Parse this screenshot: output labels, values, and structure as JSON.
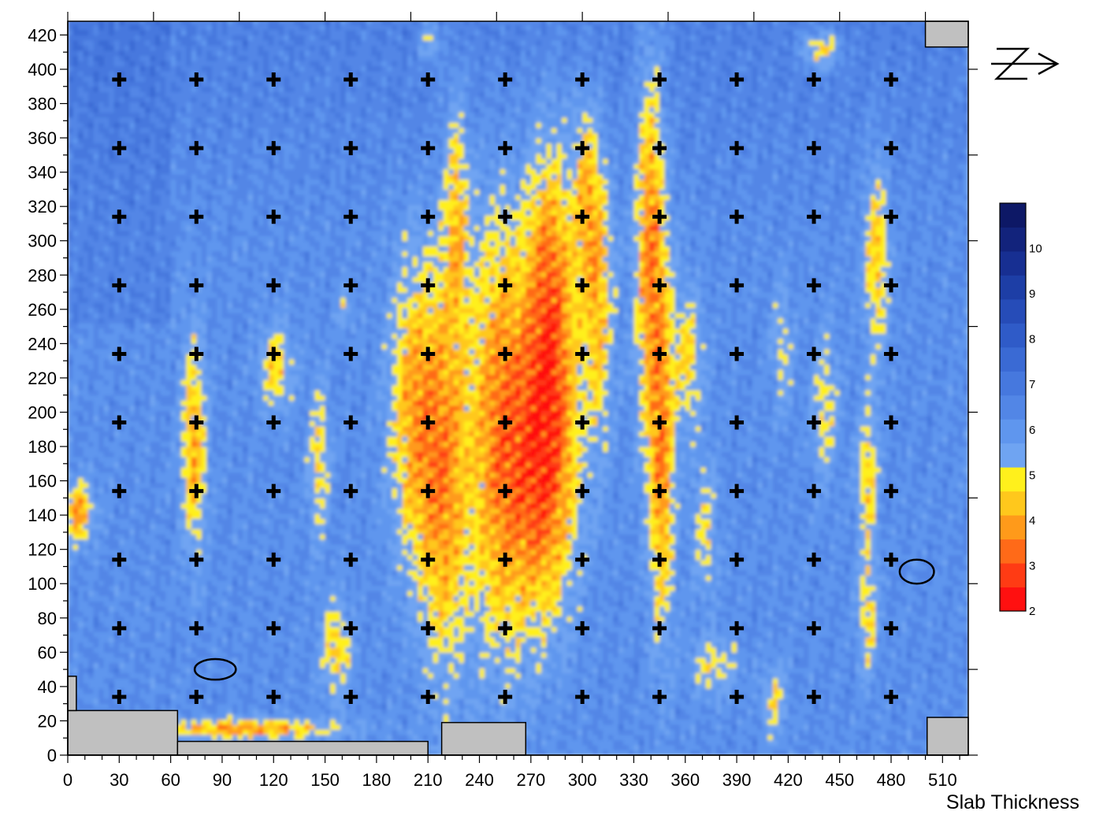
{
  "chart_data": {
    "type": "heatmap",
    "title": "Slab Thickness",
    "xlim": [
      0,
      525
    ],
    "ylim": [
      0,
      428
    ],
    "x_ticks": [
      0,
      30,
      60,
      90,
      120,
      150,
      180,
      210,
      240,
      270,
      300,
      330,
      360,
      390,
      420,
      450,
      480,
      510
    ],
    "y_ticks": [
      0,
      20,
      40,
      60,
      80,
      100,
      120,
      140,
      160,
      180,
      200,
      220,
      240,
      260,
      280,
      300,
      320,
      340,
      360,
      380,
      400,
      420
    ],
    "grid": false,
    "legend": "right colorbar",
    "north_arrow": true,
    "colorbar": {
      "ticks": [
        2,
        3,
        4,
        5,
        6,
        7,
        8,
        9,
        10
      ],
      "range": [
        2,
        11
      ],
      "colors": [
        "#ff1010",
        "#ff3b14",
        "#ff6a18",
        "#ff9a1a",
        "#ffc81c",
        "#fff01c",
        "#6fa4f2",
        "#5f96ee",
        "#5286e6",
        "#4678de",
        "#3a6ad4",
        "#2f5bc8",
        "#264cb8",
        "#1d3ea6",
        "#172f92",
        "#12237c",
        "#0d1866"
      ]
    },
    "base_value": 6.2,
    "thin_zones": [
      {
        "x": 345,
        "y": 168,
        "sx": 5,
        "sy": 70,
        "depth": 2.2
      },
      {
        "x": 338,
        "y": 300,
        "sx": 6,
        "sy": 80,
        "depth": 2.4
      },
      {
        "x": 280,
        "y": 260,
        "sx": 10,
        "sy": 70,
        "depth": 2.6
      },
      {
        "x": 275,
        "y": 160,
        "sx": 14,
        "sy": 60,
        "depth": 2.4
      },
      {
        "x": 250,
        "y": 190,
        "sx": 12,
        "sy": 90,
        "depth": 2.3
      },
      {
        "x": 218,
        "y": 160,
        "sx": 10,
        "sy": 80,
        "depth": 2.2
      },
      {
        "x": 200,
        "y": 200,
        "sx": 10,
        "sy": 60,
        "depth": 1.9
      },
      {
        "x": 225,
        "y": 320,
        "sx": 5,
        "sy": 50,
        "depth": 1.6
      },
      {
        "x": 300,
        "y": 330,
        "sx": 5,
        "sy": 40,
        "depth": 1.4
      },
      {
        "x": 308,
        "y": 270,
        "sx": 6,
        "sy": 60,
        "depth": 1.8
      },
      {
        "x": 360,
        "y": 230,
        "sx": 6,
        "sy": 30,
        "depth": 1.4
      },
      {
        "x": 370,
        "y": 130,
        "sx": 5,
        "sy": 30,
        "depth": 1.1
      },
      {
        "x": 72,
        "y": 180,
        "sx": 5,
        "sy": 45,
        "depth": 2.0
      },
      {
        "x": 120,
        "y": 225,
        "sx": 7,
        "sy": 18,
        "depth": 1.5
      },
      {
        "x": 145,
        "y": 170,
        "sx": 4,
        "sy": 30,
        "depth": 1.5
      },
      {
        "x": 5,
        "y": 140,
        "sx": 6,
        "sy": 12,
        "depth": 2.2
      },
      {
        "x": 155,
        "y": 60,
        "sx": 6,
        "sy": 20,
        "depth": 1.6
      },
      {
        "x": 100,
        "y": 14,
        "sx": 40,
        "sy": 4,
        "depth": 2.2
      },
      {
        "x": 440,
        "y": 200,
        "sx": 5,
        "sy": 30,
        "depth": 1.3
      },
      {
        "x": 465,
        "y": 160,
        "sx": 4,
        "sy": 30,
        "depth": 1.6
      },
      {
        "x": 470,
        "y": 290,
        "sx": 5,
        "sy": 40,
        "depth": 1.7
      },
      {
        "x": 465,
        "y": 80,
        "sx": 4,
        "sy": 25,
        "depth": 1.4
      },
      {
        "x": 438,
        "y": 410,
        "sx": 8,
        "sy": 8,
        "depth": 1.8
      },
      {
        "x": 415,
        "y": 235,
        "sx": 4,
        "sy": 25,
        "depth": 1.1
      },
      {
        "x": 375,
        "y": 50,
        "sx": 10,
        "sy": 12,
        "depth": 1.2
      },
      {
        "x": 210,
        "y": 415,
        "sx": 4,
        "sy": 10,
        "depth": 1.4
      },
      {
        "x": 160,
        "y": 260,
        "sx": 3,
        "sy": 10,
        "depth": 0.9
      },
      {
        "x": 410,
        "y": 30,
        "sx": 5,
        "sy": 15,
        "depth": 1.3
      }
    ],
    "markers": {
      "symbol": "plus",
      "x": [
        30,
        75,
        120,
        165,
        210,
        255,
        300,
        345,
        390,
        435,
        480
      ],
      "y": [
        34,
        74,
        114,
        154,
        194,
        234,
        274,
        314,
        354,
        394
      ]
    },
    "ellipses": [
      {
        "cx": 86,
        "cy": 50,
        "rx": 12,
        "ry": 6
      },
      {
        "cx": 495,
        "cy": 107,
        "rx": 10,
        "ry": 7
      }
    ],
    "masked_regions": [
      {
        "x0": 0,
        "x1": 64,
        "y0": 0,
        "y1": 26
      },
      {
        "x0": 0,
        "x1": 5,
        "y0": 26,
        "y1": 46
      },
      {
        "x0": 64,
        "x1": 210,
        "y0": 0,
        "y1": 8
      },
      {
        "x0": 218,
        "x1": 267,
        "y0": 0,
        "y1": 19
      },
      {
        "x0": 501,
        "x1": 525,
        "y0": 0,
        "y1": 22
      },
      {
        "x0": 500,
        "x1": 525,
        "y0": 413,
        "y1": 428
      }
    ]
  }
}
